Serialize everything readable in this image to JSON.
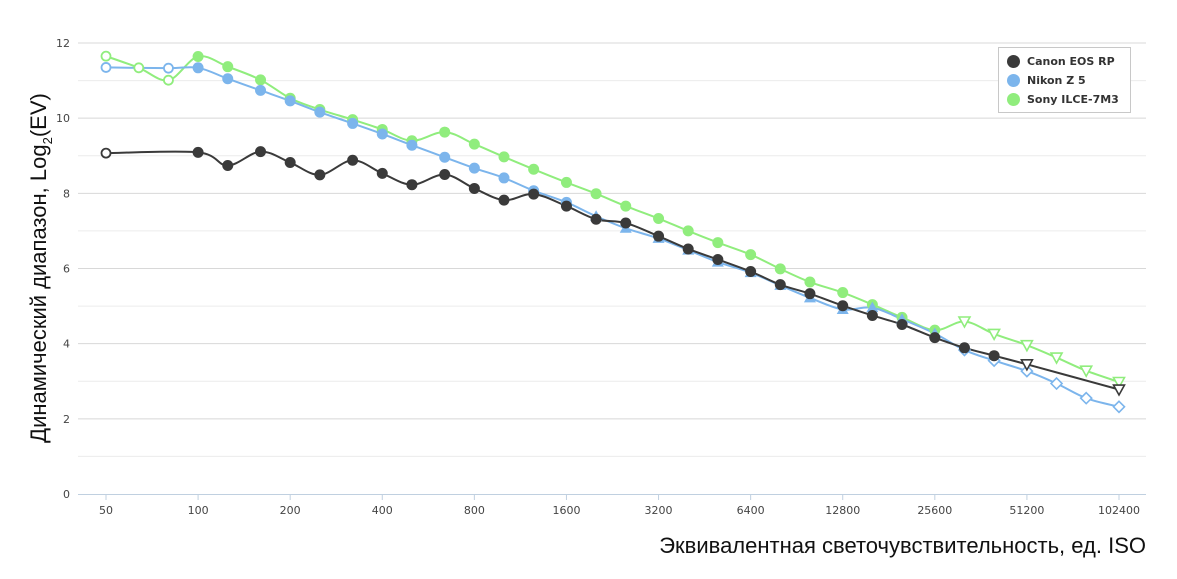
{
  "chart_data": {
    "type": "line",
    "title": "",
    "ylabel": "Динамический диапазон, Log",
    "ylabel_sub": "2",
    "ylabel_suffix": "(EV)",
    "xlabel": "Эквивалентная светочувствительность, ед. ISO",
    "x_scale": "log2",
    "xlim": [
      50,
      102400
    ],
    "ylim": [
      0,
      12
    ],
    "y_ticks": [
      0,
      2,
      4,
      6,
      8,
      10,
      12
    ],
    "x_ticks": [
      "50",
      "100",
      "200",
      "400",
      "800",
      "1600",
      "3200",
      "6400",
      "12800",
      "25600",
      "51200",
      "102400"
    ],
    "grid": "horizontal",
    "legend_position": "top-right",
    "series": [
      {
        "name": "Canon EOS RP",
        "color": "#3a3a3a",
        "points": [
          [
            50,
            9.07,
            "o"
          ],
          [
            100,
            9.09,
            "c"
          ],
          [
            125,
            8.74,
            "c"
          ],
          [
            160,
            9.11,
            "c"
          ],
          [
            200,
            8.82,
            "c"
          ],
          [
            250,
            8.49,
            "c"
          ],
          [
            320,
            8.88,
            "c"
          ],
          [
            400,
            8.53,
            "c"
          ],
          [
            500,
            8.23,
            "c"
          ],
          [
            640,
            8.5,
            "c"
          ],
          [
            800,
            8.13,
            "c"
          ],
          [
            1000,
            7.82,
            "c"
          ],
          [
            1250,
            7.98,
            "c"
          ],
          [
            1600,
            7.66,
            "c"
          ],
          [
            2000,
            7.31,
            "c"
          ],
          [
            2500,
            7.21,
            "c"
          ],
          [
            3200,
            6.86,
            "c"
          ],
          [
            4000,
            6.52,
            "c"
          ],
          [
            5000,
            6.24,
            "c"
          ],
          [
            6400,
            5.92,
            "c"
          ],
          [
            8000,
            5.57,
            "c"
          ],
          [
            10000,
            5.33,
            "c"
          ],
          [
            12800,
            5.01,
            "c"
          ],
          [
            16000,
            4.75,
            "c"
          ],
          [
            20000,
            4.51,
            "c"
          ],
          [
            25600,
            4.16,
            "c"
          ],
          [
            32000,
            3.89,
            "c"
          ],
          [
            40000,
            3.68,
            "c"
          ],
          [
            51200,
            3.45,
            "v"
          ],
          [
            102400,
            2.78,
            "v"
          ]
        ]
      },
      {
        "name": "Nikon Z 5",
        "color": "#7cb5ec",
        "points": [
          [
            50,
            11.35,
            "o"
          ],
          [
            80,
            11.33,
            "o"
          ],
          [
            100,
            11.34,
            "c"
          ],
          [
            125,
            11.05,
            "c"
          ],
          [
            160,
            10.74,
            "c"
          ],
          [
            200,
            10.46,
            "c"
          ],
          [
            250,
            10.16,
            "c"
          ],
          [
            320,
            9.86,
            "c"
          ],
          [
            400,
            9.58,
            "c"
          ],
          [
            500,
            9.28,
            "c"
          ],
          [
            640,
            8.96,
            "c"
          ],
          [
            800,
            8.67,
            "c"
          ],
          [
            1000,
            8.41,
            "c"
          ],
          [
            1250,
            8.07,
            "c"
          ],
          [
            1600,
            7.76,
            "c"
          ],
          [
            2000,
            7.39,
            "t"
          ],
          [
            2500,
            7.07,
            "t"
          ],
          [
            3200,
            6.8,
            "t"
          ],
          [
            4000,
            6.49,
            "t"
          ],
          [
            5000,
            6.17,
            "t"
          ],
          [
            6400,
            5.89,
            "t"
          ],
          [
            8000,
            5.55,
            "t"
          ],
          [
            10000,
            5.22,
            "t"
          ],
          [
            12800,
            4.91,
            "t"
          ],
          [
            16000,
            4.96,
            "t"
          ],
          [
            20000,
            4.65,
            "t"
          ],
          [
            25600,
            4.27,
            "t"
          ],
          [
            32000,
            3.83,
            "d"
          ],
          [
            40000,
            3.55,
            "d"
          ],
          [
            51200,
            3.27,
            "d"
          ],
          [
            64000,
            2.94,
            "d"
          ],
          [
            80000,
            2.55,
            "d"
          ],
          [
            102400,
            2.32,
            "d"
          ]
        ]
      },
      {
        "name": "Sony ILCE-7M3",
        "color": "#90ed7d",
        "points": [
          [
            50,
            11.65,
            "o"
          ],
          [
            64,
            11.34,
            "o"
          ],
          [
            80,
            11.01,
            "o"
          ],
          [
            100,
            11.64,
            "c"
          ],
          [
            125,
            11.37,
            "c"
          ],
          [
            160,
            11.02,
            "c"
          ],
          [
            200,
            10.53,
            "c"
          ],
          [
            250,
            10.23,
            "c"
          ],
          [
            320,
            9.96,
            "c"
          ],
          [
            400,
            9.7,
            "c"
          ],
          [
            500,
            9.4,
            "c"
          ],
          [
            640,
            9.63,
            "c"
          ],
          [
            800,
            9.31,
            "c"
          ],
          [
            1000,
            8.97,
            "c"
          ],
          [
            1250,
            8.64,
            "c"
          ],
          [
            1600,
            8.29,
            "c"
          ],
          [
            2000,
            7.99,
            "c"
          ],
          [
            2500,
            7.66,
            "c"
          ],
          [
            3200,
            7.33,
            "c"
          ],
          [
            4000,
            7.0,
            "c"
          ],
          [
            5000,
            6.69,
            "c"
          ],
          [
            6400,
            6.37,
            "c"
          ],
          [
            8000,
            5.99,
            "c"
          ],
          [
            10000,
            5.64,
            "c"
          ],
          [
            12800,
            5.36,
            "c"
          ],
          [
            16000,
            5.04,
            "c"
          ],
          [
            20000,
            4.7,
            "c"
          ],
          [
            25600,
            4.36,
            "c"
          ],
          [
            32000,
            4.59,
            "v"
          ],
          [
            40000,
            4.26,
            "v"
          ],
          [
            51200,
            3.96,
            "v"
          ],
          [
            64000,
            3.63,
            "v"
          ],
          [
            80000,
            3.28,
            "v"
          ],
          [
            102400,
            2.98,
            "v"
          ]
        ]
      }
    ]
  }
}
